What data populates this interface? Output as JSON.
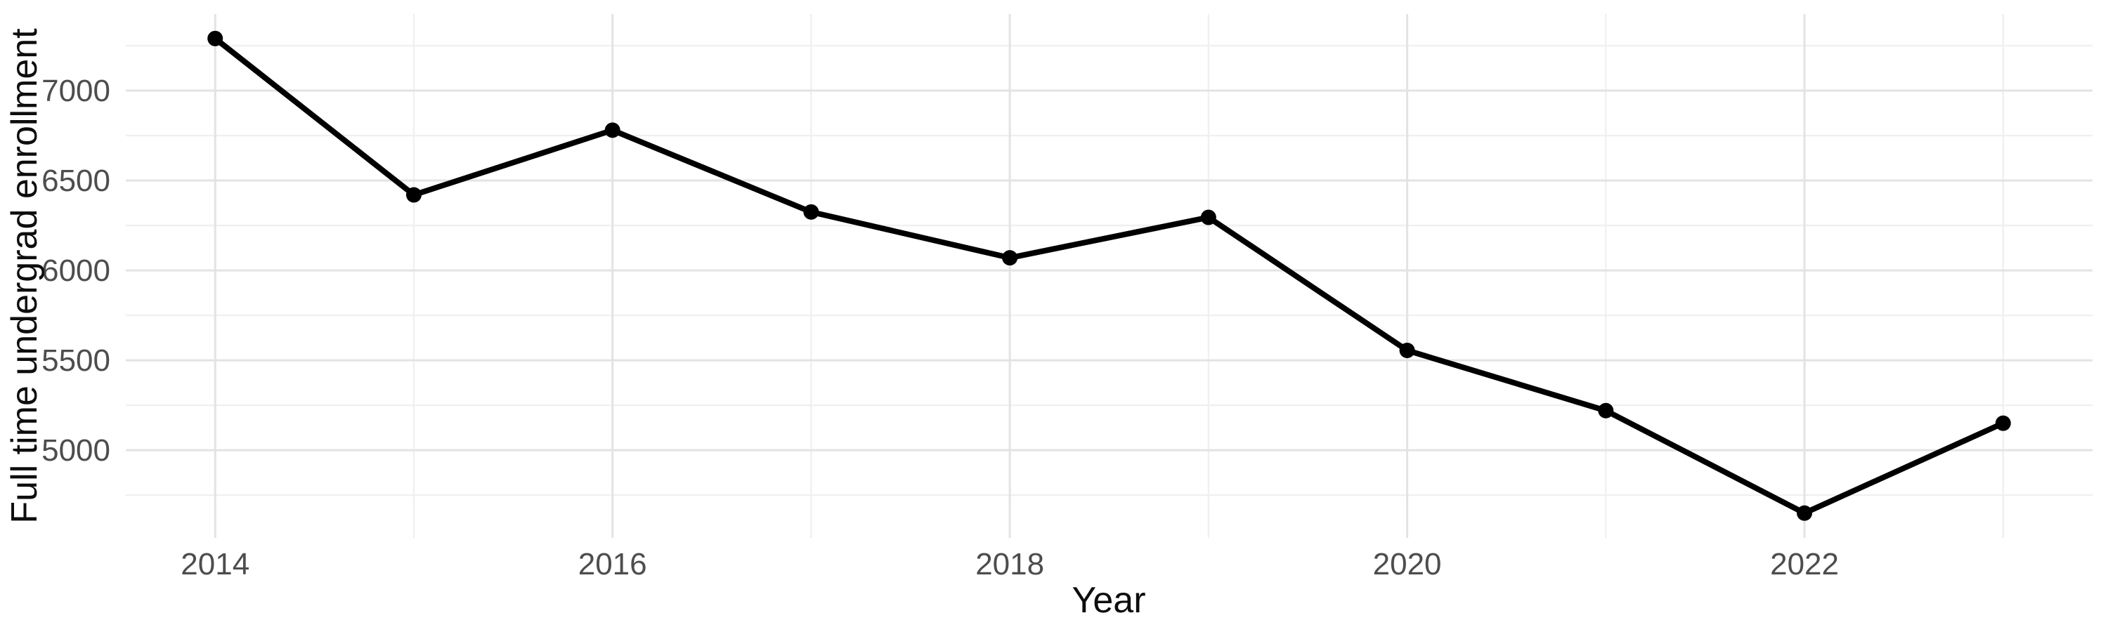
{
  "chart_data": {
    "type": "line",
    "title": "",
    "xlabel": "Year",
    "ylabel": "Full time undergrad enrollment",
    "x": [
      2014,
      2015,
      2016,
      2017,
      2018,
      2019,
      2020,
      2021,
      2022,
      2023
    ],
    "values": [
      7290,
      6420,
      6780,
      6325,
      6070,
      6295,
      5555,
      5220,
      4650,
      5150
    ],
    "series_name": "Full time undergrad enrollment",
    "xlim": [
      2013.55,
      2023.45
    ],
    "ylim": [
      4512,
      7426
    ],
    "x_major_breaks": [
      2014,
      2016,
      2018,
      2020,
      2022
    ],
    "x_major_labels": [
      "2014",
      "2016",
      "2018",
      "2020",
      "2022"
    ],
    "x_minor_breaks": [
      2015,
      2017,
      2019,
      2021,
      2023
    ],
    "y_major_breaks": [
      5000,
      5500,
      6000,
      6500,
      7000
    ],
    "y_major_labels": [
      "5000",
      "5500",
      "6000",
      "6500",
      "7000"
    ],
    "y_minor_breaks": [
      4750,
      5250,
      5750,
      6250,
      6750,
      7250
    ],
    "grid": true,
    "legend_position": "none",
    "colors": {
      "background": "#ffffff",
      "line": "#000000",
      "point": "#000000",
      "grid_major": "#e3e3e3",
      "grid_minor": "#f0f0f0",
      "tick_label": "#4d4d4d",
      "axis_title": "#0d0d0d"
    }
  }
}
